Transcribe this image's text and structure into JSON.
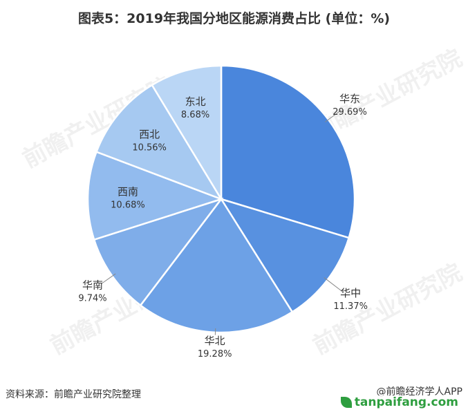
{
  "header": {
    "title": "图表5：2019年我国分地区能源消费占比 (单位：%)"
  },
  "chart_data": {
    "type": "pie",
    "title": "图表5：2019年我国分地区能源消费占比 (单位：%)",
    "unit": "%",
    "start_angle_deg": 0,
    "direction": "clockwise",
    "colors": [
      "#4a86dc",
      "#5891e0",
      "#6da1e6",
      "#7fade9",
      "#92bbee",
      "#a6c9f1",
      "#bad6f5"
    ],
    "labels": [
      "华东",
      "华中",
      "华北",
      "华南",
      "西南",
      "西北",
      "东北"
    ],
    "values": [
      29.69,
      11.37,
      19.28,
      9.74,
      10.68,
      10.56,
      8.68
    ],
    "value_labels": [
      "29.69%",
      "11.37%",
      "19.28%",
      "9.74%",
      "10.68%",
      "10.56%",
      "8.68%"
    ]
  },
  "watermark": "前瞻产业研究院",
  "footer": {
    "source": "资料来源：前瞻产业研究院整理",
    "credit": "@前瞻经济学人APP",
    "stamp": "tanpaifang.com"
  }
}
